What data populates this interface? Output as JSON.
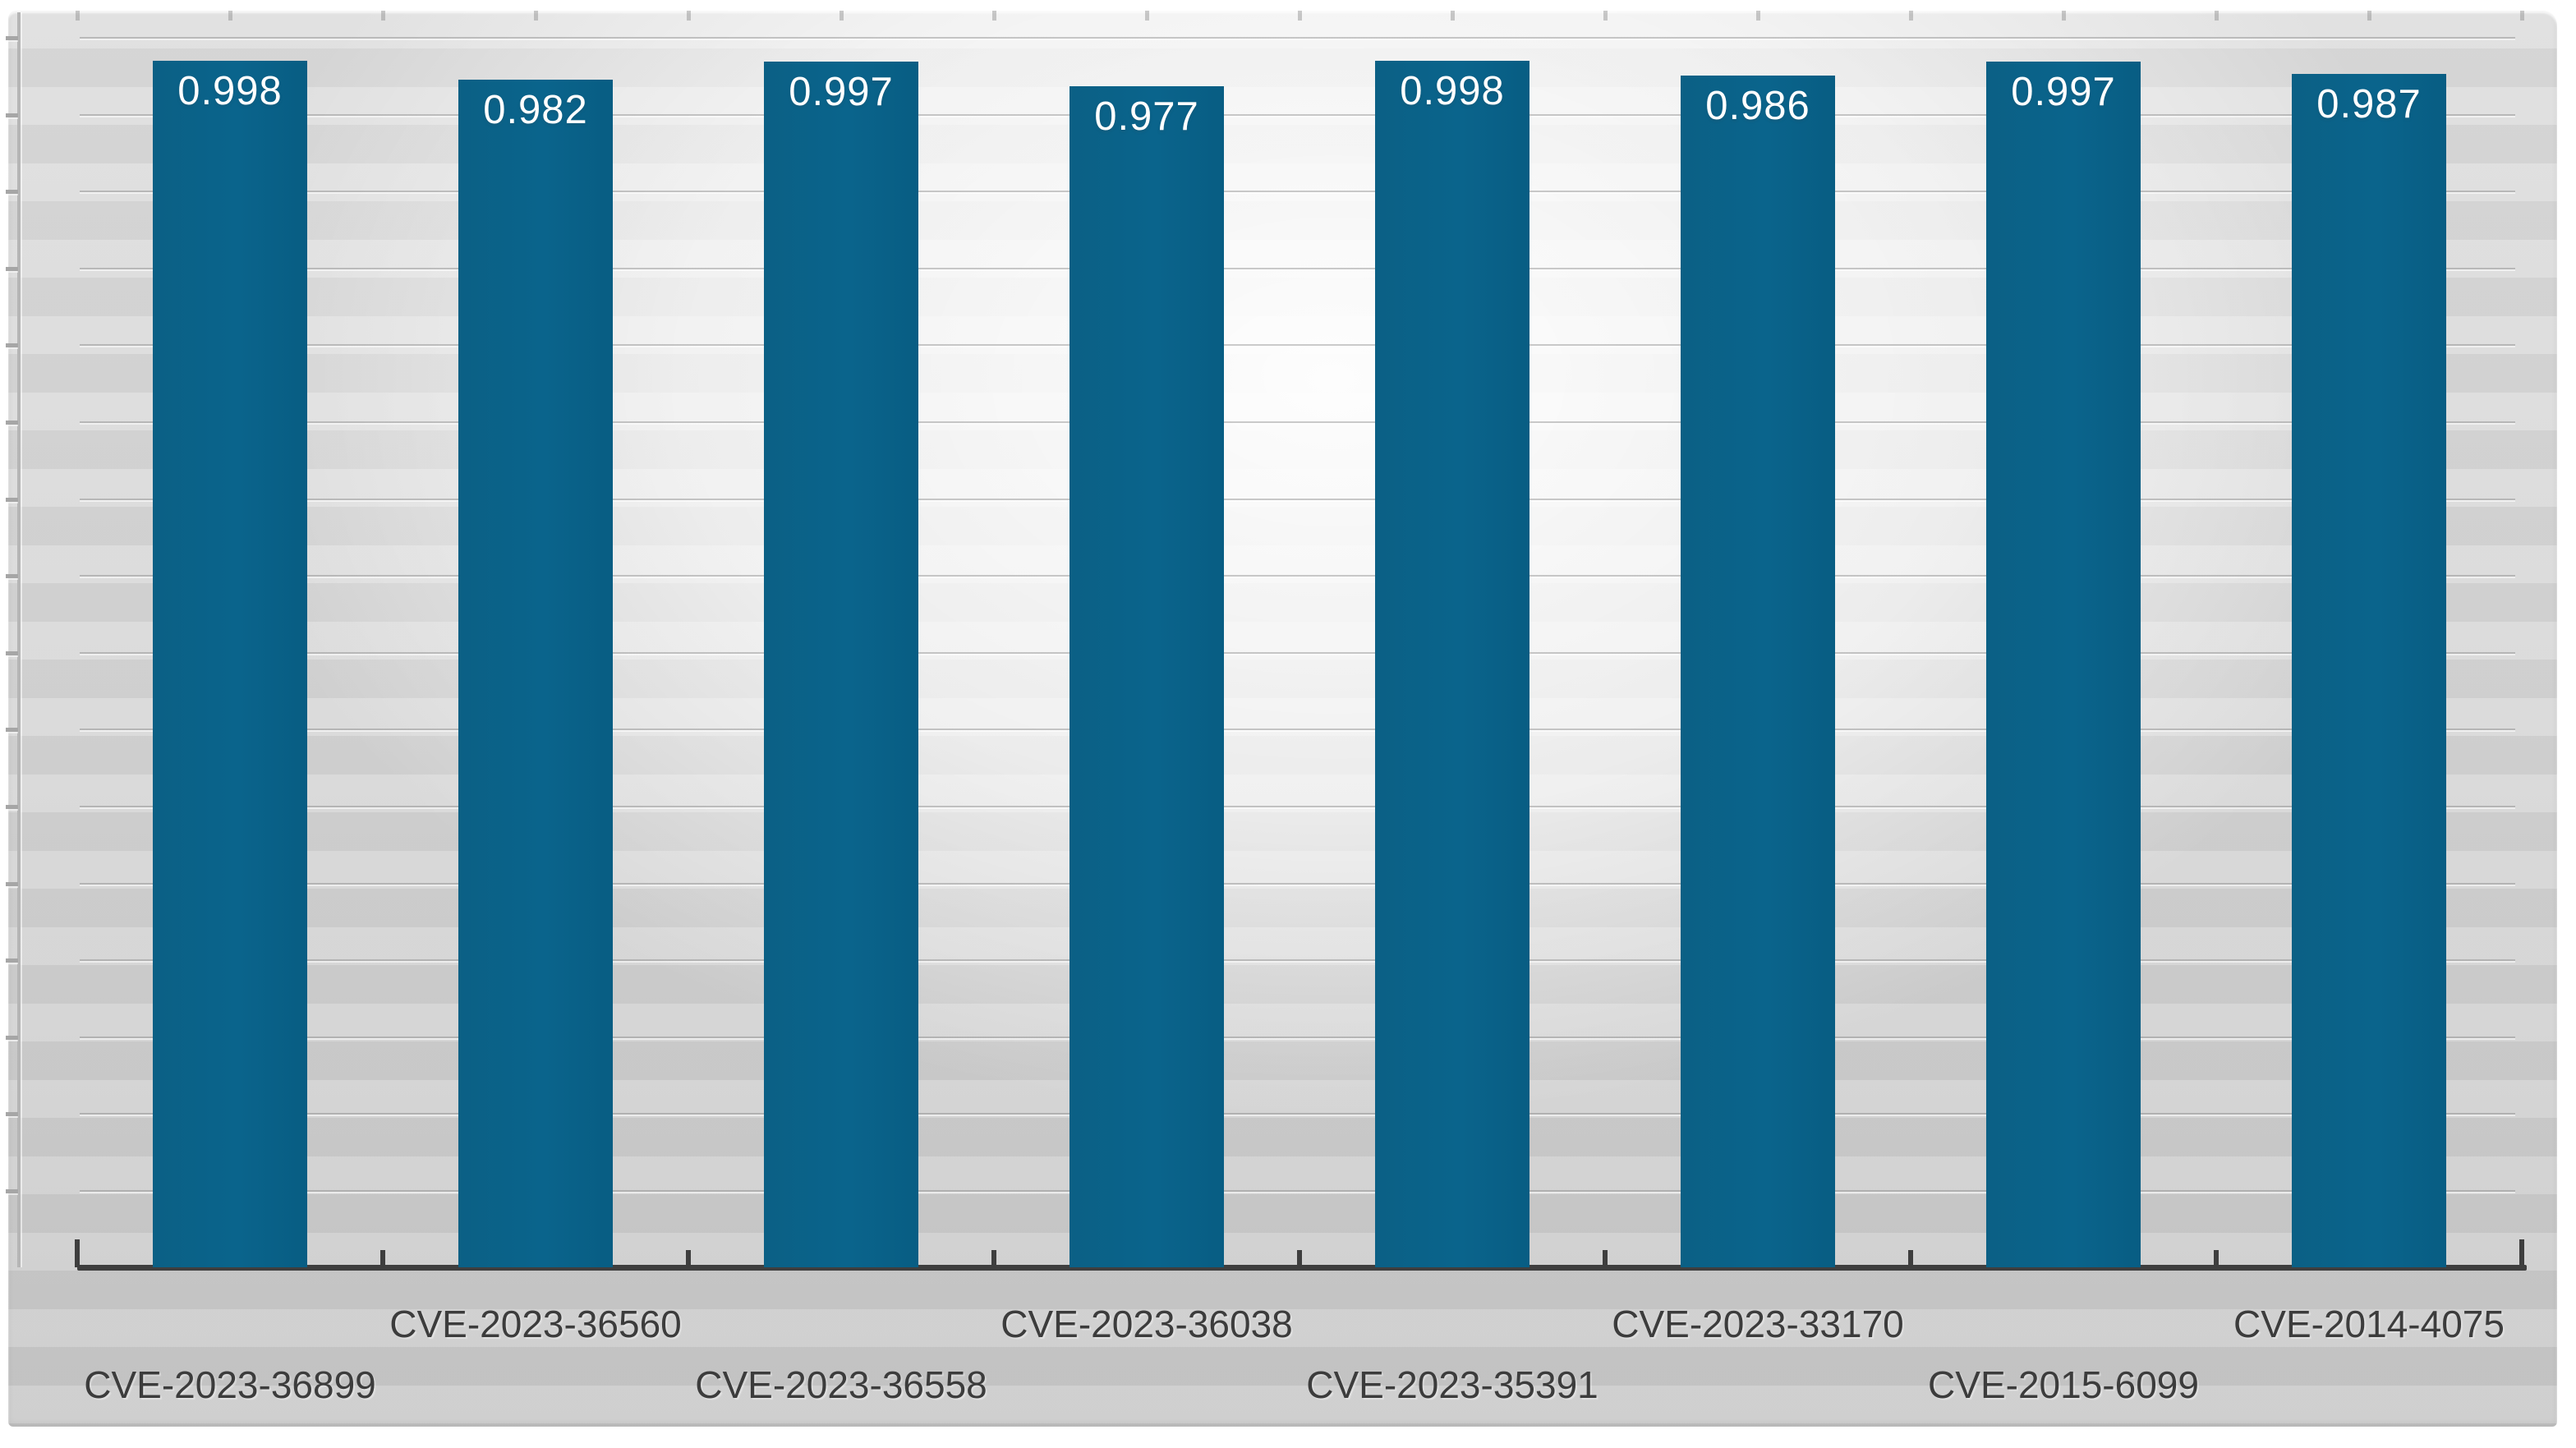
{
  "chart_data": {
    "type": "bar",
    "categories": [
      "CVE-2023-36899",
      "CVE-2023-36560",
      "CVE-2023-36558",
      "CVE-2023-36038",
      "CVE-2023-35391",
      "CVE-2023-33170",
      "CVE-2015-6099",
      "CVE-2014-4075"
    ],
    "values": [
      0.998,
      0.982,
      0.997,
      0.977,
      0.998,
      0.986,
      0.997,
      0.987
    ],
    "value_labels": [
      "0.998",
      "0.982",
      "0.997",
      "0.977",
      "0.998",
      "0.986",
      "0.997",
      "0.987"
    ],
    "x_label_rows": [
      "lower",
      "upper",
      "lower",
      "upper",
      "lower",
      "upper",
      "lower",
      "upper"
    ],
    "series_name": "",
    "ylim": [
      0,
      1.04
    ],
    "y_tick_labels_visible": false,
    "grid": "horizontal",
    "legend_position": "none",
    "x_labels_staggered": true,
    "data_labels": "inside-end"
  },
  "colors": {
    "bar_fill": "#0a648c",
    "bar_value_text": "#ffffff",
    "x_axis_line": "#3e3e3e",
    "x_label_text": "#3c3c3c",
    "y_axis_line": "#b5b5b5",
    "gridline": "#8a8a8a",
    "wall_light": "#ffffff",
    "wall_dark": "#c7c7c7",
    "page_background": "#ffffff"
  }
}
